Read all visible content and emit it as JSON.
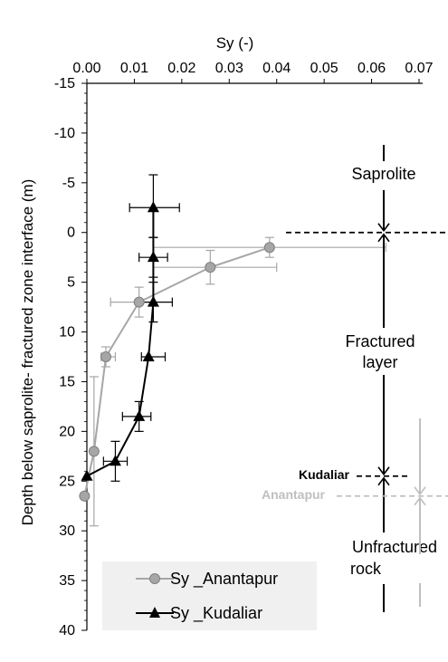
{
  "chart_data": {
    "type": "scatter",
    "title": "",
    "xlabel": "Sy (-)",
    "ylabel": "Depth below saprolite- fractured zone interface (m)",
    "xlim": [
      0,
      0.07
    ],
    "ylim": [
      -15,
      40
    ],
    "y_inverted": true,
    "x_axis_position": "top",
    "x_ticks": [
      "0.00",
      "0.01",
      "0.02",
      "0.03",
      "0.04",
      "0.05",
      "0.06",
      "0.07"
    ],
    "y_ticks": [
      "-15",
      "-10",
      "-5",
      "0",
      "5",
      "10",
      "15",
      "20",
      "25",
      "30",
      "35",
      "40"
    ],
    "legend_position": "bottom-left",
    "colors": {
      "anantapur": "#a6a6a6",
      "kudaliar": "#000000"
    },
    "series": [
      {
        "name": "Sy _Anantapur",
        "marker": "circle",
        "x": [
          0.0385,
          0.026,
          0.011,
          0.004,
          0.0015,
          -0.0005
        ],
        "y": [
          1.5,
          3.5,
          7.0,
          12.5,
          22.0,
          26.5
        ],
        "x_err": [
          [
            0.014,
            0.063
          ],
          [
            0.014,
            0.04
          ],
          [
            0.005,
            0.014
          ],
          [
            0.003,
            0.006
          ],
          null,
          null
        ],
        "y_err": [
          [
            0.5,
            2.5
          ],
          [
            1.8,
            5.2
          ],
          [
            5.5,
            8.5
          ],
          [
            11.5,
            13.5
          ],
          [
            14.5,
            29.5
          ],
          null
        ]
      },
      {
        "name": "Sy _Kudaliar",
        "marker": "triangle",
        "x": [
          0.014,
          0.014,
          0.014,
          0.013,
          0.011,
          0.006,
          0.0
        ],
        "y": [
          -2.5,
          2.5,
          7.0,
          12.5,
          18.5,
          23.0,
          24.5
        ],
        "x_err": [
          [
            0.009,
            0.0195
          ],
          [
            0.011,
            0.017
          ],
          [
            0.011,
            0.018
          ],
          [
            0.0115,
            0.0165
          ],
          [
            0.0075,
            0.0135
          ],
          [
            0.0035,
            0.0085
          ],
          null
        ],
        "y_err": [
          [
            -5.8,
            0.5
          ],
          [
            0.5,
            4.5
          ],
          [
            5.0,
            9.0
          ],
          null,
          [
            17.0,
            20.0
          ],
          [
            21.0,
            25.0
          ],
          null
        ]
      }
    ],
    "annotations": {
      "saprolite": "Saprolite",
      "fractured_line1": "Fractured",
      "fractured_line2": "layer",
      "unfractured_line1": "Unfractured",
      "unfractured_line2": "rock",
      "kudaliar": "Kudaliar",
      "anantapur": "Anantapur"
    }
  }
}
